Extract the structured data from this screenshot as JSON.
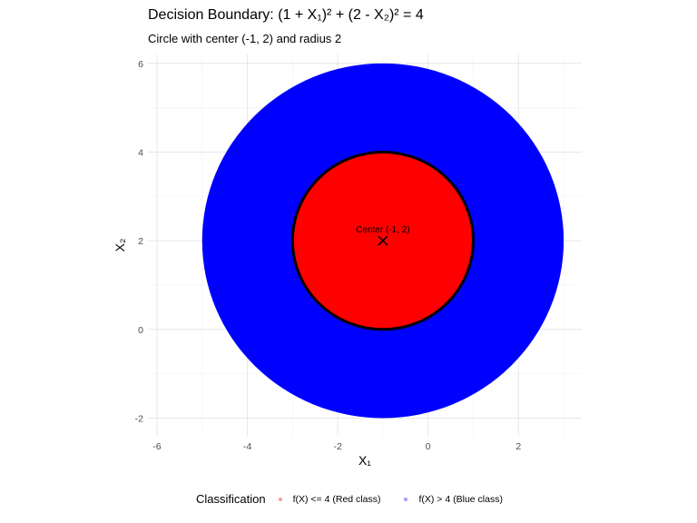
{
  "header": {
    "title": "Decision Boundary: (1 + X₁)² + (2 - X₂)² = 4",
    "subtitle": "Circle with center (-1, 2) and radius 2"
  },
  "legend": {
    "title": "Classification",
    "items": [
      {
        "label": "f(X) <= 4 (Red class)",
        "color": "#ff9a9a"
      },
      {
        "label": "f(X) > 4 (Blue class)",
        "color": "#a0a0ff"
      }
    ]
  },
  "chart_data": {
    "type": "scatter",
    "title": "Decision Boundary: (1 + X₁)² + (2 - X₂)² = 4",
    "subtitle": "Circle with center (-1, 2) and radius 2",
    "xlabel": "X₁",
    "ylabel": "X₂",
    "xlim": [
      -6.2,
      3.4
    ],
    "ylim": [
      -2.4,
      6.2
    ],
    "x_ticks": [
      "-6",
      "-4",
      "-2",
      "0",
      "2"
    ],
    "y_ticks": [
      "-2",
      "0",
      "2",
      "4",
      "6"
    ],
    "grid": true,
    "legend_position": "bottom",
    "boundary": {
      "center": [
        -1,
        2
      ],
      "radius": 2,
      "color": "#000000"
    },
    "classes": [
      {
        "name": "f(X) <= 4 (Red class)",
        "color": "#ff0000",
        "region": "inside circle"
      },
      {
        "name": "f(X) > 4 (Blue class)",
        "color": "#0000ff",
        "region": "outside circle, within f(X) <= 16"
      }
    ],
    "outer_region": {
      "center": [
        -1,
        2
      ],
      "radius": 4,
      "x_range": [
        -6,
        3
      ],
      "y_range": [
        -2,
        6
      ]
    },
    "center_marker": {
      "x": -1,
      "y": 2,
      "label": "Center (-1, 2)"
    }
  }
}
